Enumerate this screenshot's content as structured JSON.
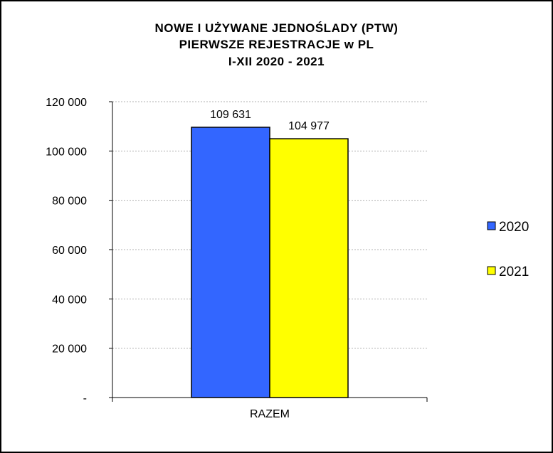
{
  "chart_data": {
    "type": "bar",
    "title_lines": [
      "NOWE I UŻYWANE  JEDNOŚLADY  (PTW)",
      "PIERWSZE  REJESTRACJE   w PL",
      "I-XII 2020 - 2021"
    ],
    "categories": [
      "RAZEM"
    ],
    "series": [
      {
        "name": "2020",
        "values": [
          109631
        ],
        "label": "109 631",
        "color": "#3366ff"
      },
      {
        "name": "2021",
        "values": [
          104977
        ],
        "label": "104 977",
        "color": "#ffff00"
      }
    ],
    "ylim": [
      0,
      120000
    ],
    "yticks": [
      {
        "value": 0,
        "label": "-"
      },
      {
        "value": 20000,
        "label": "20 000"
      },
      {
        "value": 40000,
        "label": "40 000"
      },
      {
        "value": 60000,
        "label": "60 000"
      },
      {
        "value": 80000,
        "label": "80 000"
      },
      {
        "value": 100000,
        "label": "100 000"
      },
      {
        "value": 120000,
        "label": "120 000"
      }
    ],
    "grid": true,
    "legend": "right"
  }
}
